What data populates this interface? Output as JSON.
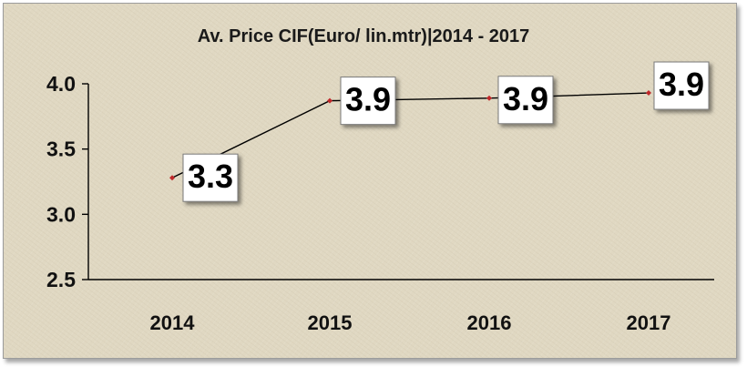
{
  "chart_data": {
    "type": "line",
    "title": "Av. Price CIF(Euro/ lin.mtr)|2014 - 2017",
    "xlabel": "",
    "ylabel": "",
    "categories": [
      "2014",
      "2015",
      "2016",
      "2017"
    ],
    "values": [
      3.28,
      3.87,
      3.89,
      3.93
    ],
    "data_labels": [
      "3.3",
      "3.9",
      "3.9",
      "3.9"
    ],
    "ylim": [
      2.5,
      4.0
    ],
    "yticks": [
      "2.5",
      "3.0",
      "3.5",
      "4.0"
    ],
    "grid": false,
    "legend": "none",
    "colors": {
      "line": "#000000",
      "marker": "#c0282a",
      "axis": "#000000",
      "label_box": "#ffffff"
    }
  }
}
